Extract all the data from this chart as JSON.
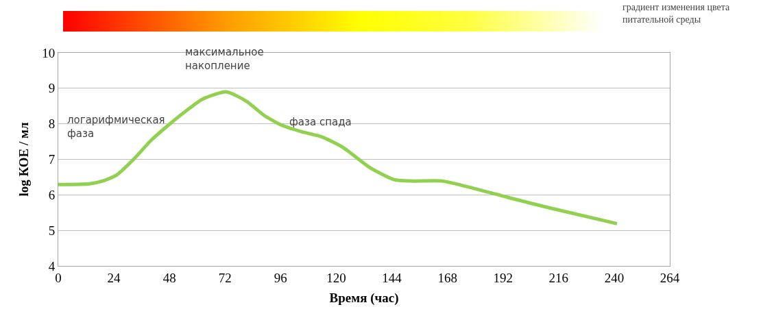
{
  "chart_data": {
    "type": "line",
    "xlabel": "Время (час)",
    "ylabel": "log КОЕ / мл",
    "x": [
      0,
      13.3,
      19.2,
      25.2,
      32.5,
      40,
      47.3,
      54.7,
      62.1,
      72.5,
      81.4,
      88.8,
      96.2,
      105,
      113.9,
      122.8,
      134.7,
      145,
      152.4,
      165.7,
      176,
      194,
      211.7,
      241.2
    ],
    "series": [
      {
        "color": "#92d050",
        "values": [
          6.29,
          6.31,
          6.39,
          6.56,
          7.0,
          7.53,
          7.95,
          8.34,
          8.69,
          8.9,
          8.63,
          8.24,
          7.97,
          7.78,
          7.63,
          7.34,
          6.76,
          6.43,
          6.39,
          6.39,
          6.24,
          5.93,
          5.64,
          5.19
        ]
      }
    ],
    "xlim": [
      0,
      264
    ],
    "xticks": [
      0,
      24,
      48,
      72,
      96,
      120,
      144,
      168,
      192,
      216,
      240,
      264
    ],
    "ylim": [
      4,
      10
    ],
    "yticks": [
      4,
      5,
      6,
      7,
      8,
      9,
      10
    ],
    "grid": "y",
    "marker": "none",
    "line_style": "solid",
    "annotations": [
      "логарифмическая\nфаза",
      "максимальное\nнакопление",
      "фаза спада",
      "градиент изменения цвета\nпитательной среды"
    ]
  }
}
